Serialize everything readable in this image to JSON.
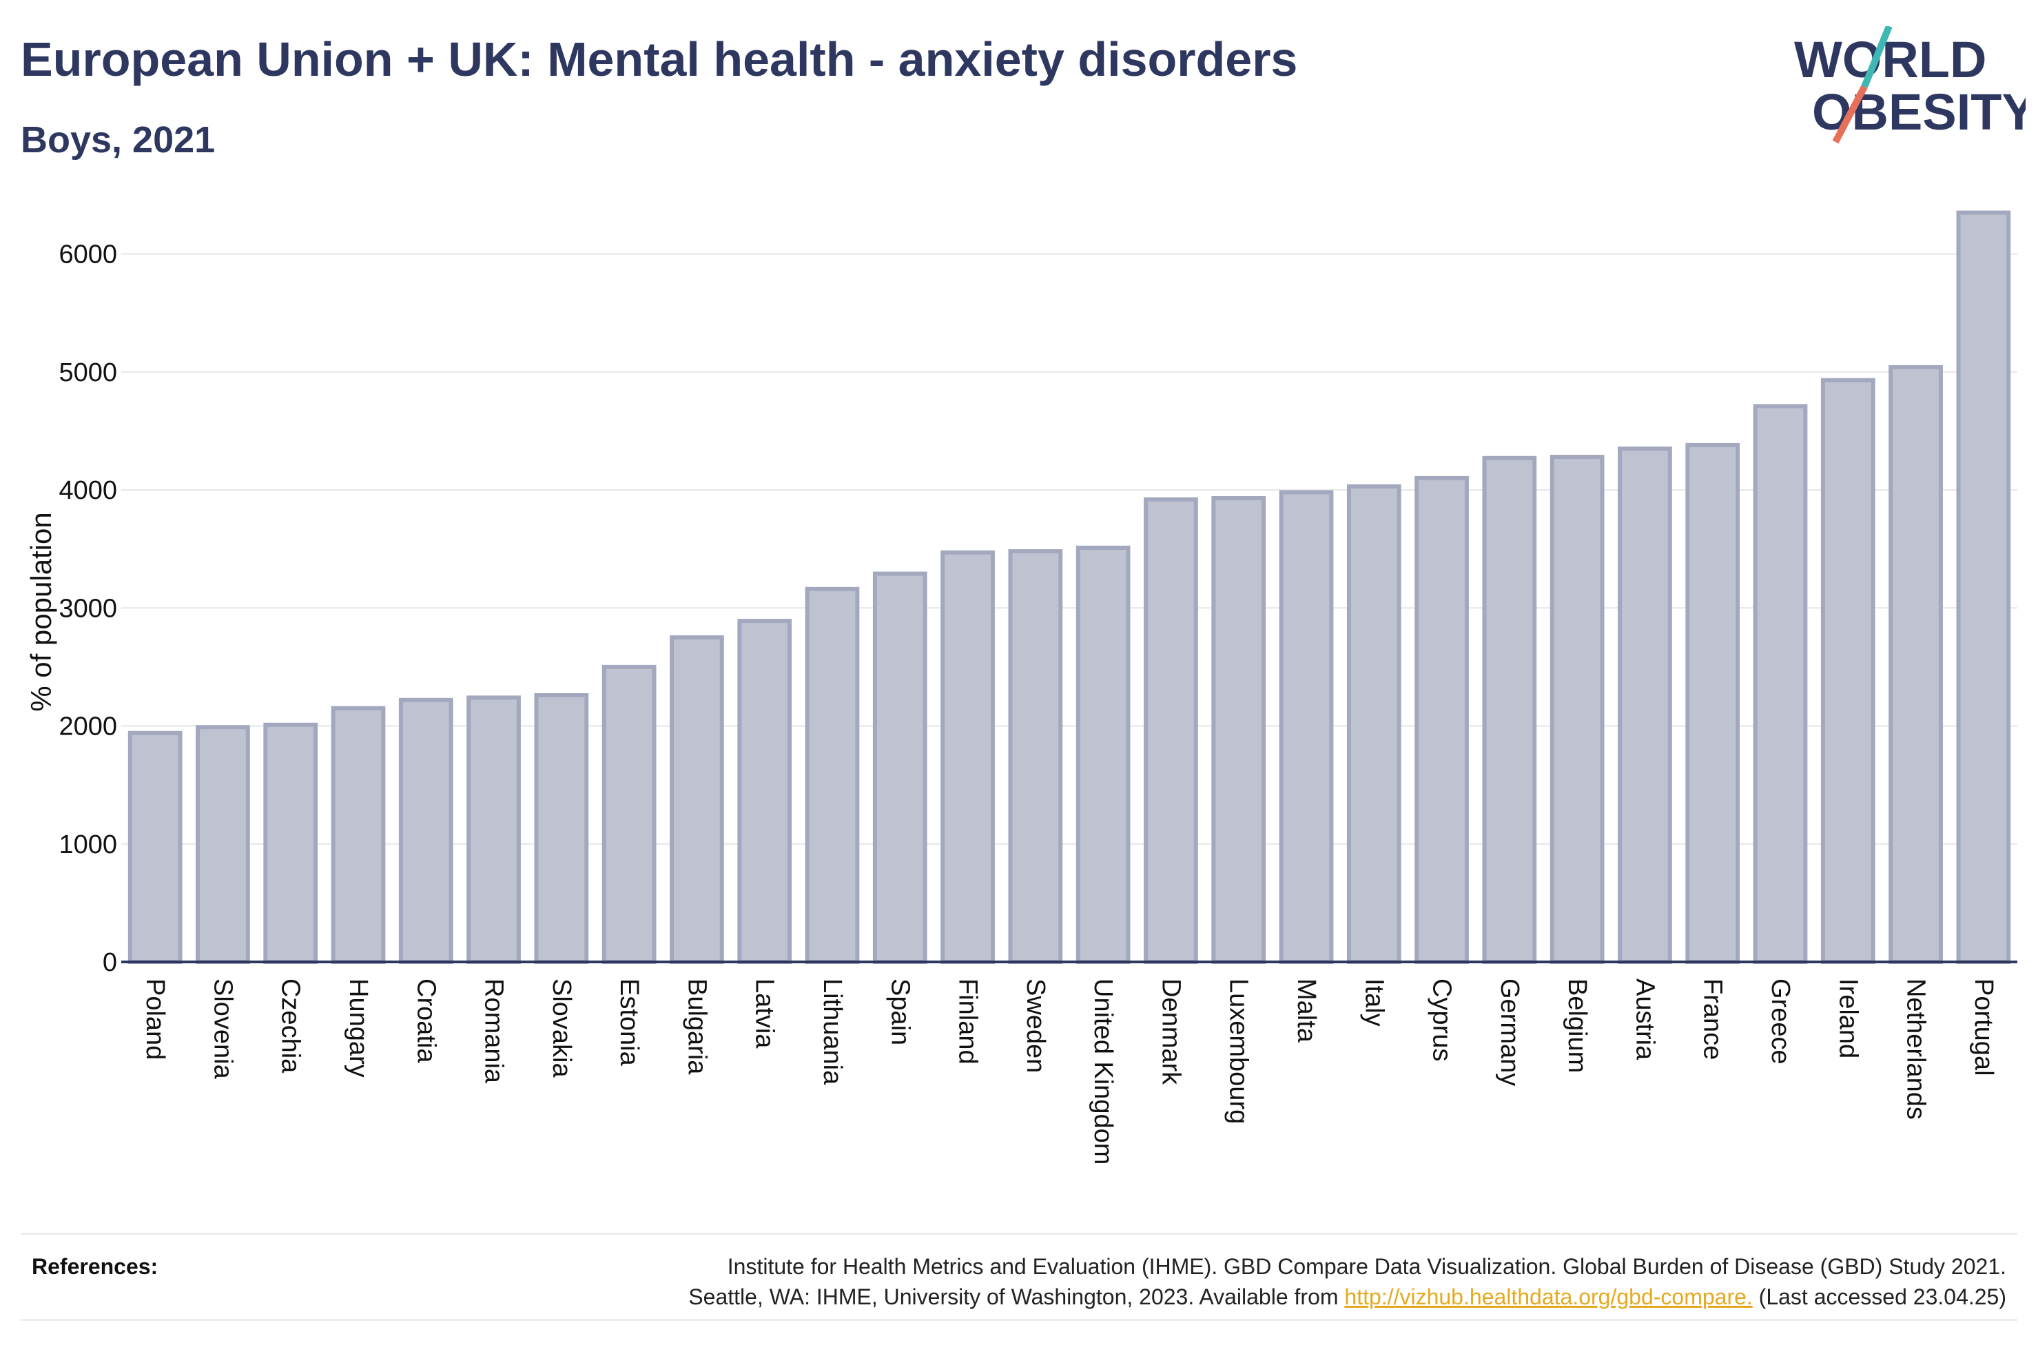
{
  "header": {
    "title": "European Union + UK: Mental health - anxiety disorders",
    "subtitle": "Boys, 2021"
  },
  "logo": {
    "line1": "WORLD",
    "line2": "OBESITY",
    "colors": {
      "text": "#2d375f",
      "slash_top": "#3fb7b3",
      "slash_bottom": "#e8705a"
    }
  },
  "chart_data": {
    "type": "bar",
    "title": "European Union + UK: Mental health - anxiety disorders",
    "subtitle": "Boys, 2021",
    "ylabel": "% of population",
    "xlabel": "",
    "ylim": [
      0,
      6400
    ],
    "yticks": [
      0,
      1000,
      2000,
      3000,
      4000,
      5000,
      6000
    ],
    "grid": true,
    "categories": [
      "Poland",
      "Slovenia",
      "Czechia",
      "Hungary",
      "Croatia",
      "Romania",
      "Slovakia",
      "Estonia",
      "Bulgaria",
      "Latvia",
      "Lithuania",
      "Spain",
      "Finland",
      "Sweden",
      "United Kingdom",
      "Denmark",
      "Luxembourg",
      "Malta",
      "Italy",
      "Cyprus",
      "Germany",
      "Belgium",
      "Austria",
      "France",
      "Greece",
      "Ireland",
      "Netherlands",
      "Portugal"
    ],
    "values": [
      1940,
      1990,
      2010,
      2150,
      2220,
      2240,
      2260,
      2500,
      2750,
      2890,
      3160,
      3290,
      3470,
      3480,
      3510,
      3920,
      3930,
      3980,
      4030,
      4100,
      4270,
      4280,
      4350,
      4380,
      4710,
      4930,
      5040,
      6350
    ],
    "colors": {
      "bar_fill": "#bfc2d0",
      "bar_stroke": "#a3a8be",
      "axis": "#2d375f",
      "grid": "#e6e6ea"
    }
  },
  "references": {
    "label": "References:",
    "line1": "Institute for Health Metrics and Evaluation (IHME). GBD Compare Data Visualization. Global Burden of Disease (GBD) Study 2021.",
    "line2_prefix": "Seattle, WA: IHME, University of Washington, 2023. Available from ",
    "link": "http://vizhub.healthdata.org/gbd-compare.",
    "line2_suffix": " (Last accessed 23.04.25)"
  }
}
